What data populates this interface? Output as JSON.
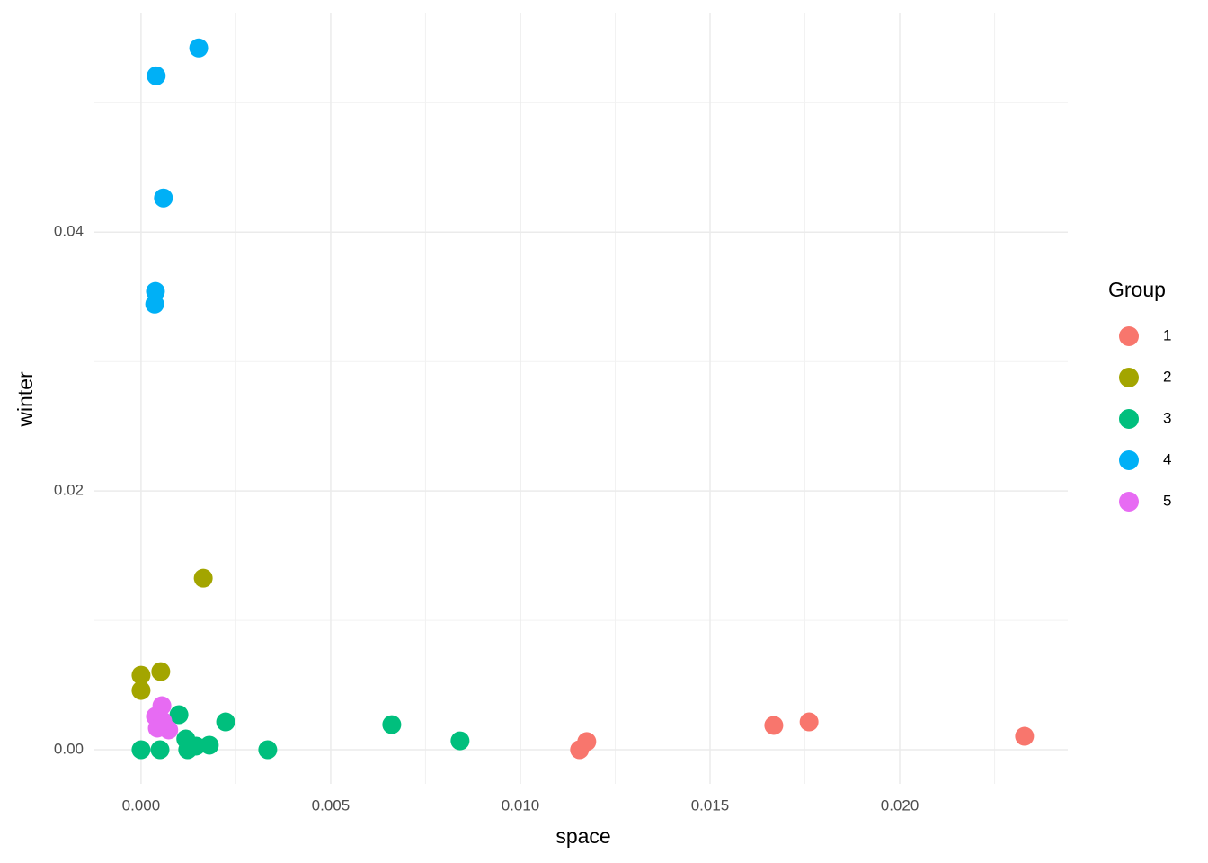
{
  "chart_data": {
    "type": "scatter",
    "xlabel": "space",
    "ylabel": "winter",
    "legend_title": "Group",
    "legend": "right",
    "grid": true,
    "xlim": [
      -0.00123,
      0.02443
    ],
    "ylim": [
      -0.00264,
      0.0569
    ],
    "xticks": [
      {
        "value": 0,
        "label": "0.000"
      },
      {
        "value": 0.005,
        "label": "0.005"
      },
      {
        "value": 0.01,
        "label": "0.010"
      },
      {
        "value": 0.015,
        "label": "0.015"
      },
      {
        "value": 0.02,
        "label": "0.020"
      }
    ],
    "yticks": [
      {
        "value": 0,
        "label": "0.00"
      },
      {
        "value": 0.02,
        "label": "0.02"
      },
      {
        "value": 0.04,
        "label": "0.04"
      }
    ],
    "xminor": [
      0.0025,
      0.0075,
      0.0125,
      0.0175,
      0.0225
    ],
    "yminor": [
      0.01,
      0.03,
      0.05
    ],
    "series": [
      {
        "name": "1",
        "color": "#F8766D",
        "x": [
          0.01156,
          0.01175,
          0.01668,
          0.01761,
          0.02329
        ],
        "values": [
          0,
          0.00063,
          0.00188,
          0.00215,
          0.00104
        ]
      },
      {
        "name": "2",
        "color": "#A3A500",
        "x": [
          0,
          0,
          0.00052,
          0.00164
        ],
        "values": [
          0.00576,
          0.00458,
          0.00604,
          0.01326
        ]
      },
      {
        "name": "3",
        "color": "#00BF7D",
        "x": [
          0,
          0.0005,
          0.001,
          0.00118,
          0.00123,
          0.00145,
          0.0018,
          0.00223,
          0.00334,
          0.00661,
          0.00841
        ],
        "values": [
          0,
          0,
          0.00271,
          0.00083,
          0,
          0.00028,
          0.00035,
          0.00215,
          0,
          0.00194,
          0.00069
        ]
      },
      {
        "name": "4",
        "color": "#00B0F6",
        "x": [
          0.00152,
          0.0004,
          0.00059,
          0.00038,
          0.00036
        ],
        "values": [
          0.05424,
          0.05208,
          0.04264,
          0.03542,
          0.03444
        ]
      },
      {
        "name": "5",
        "color": "#E76BF3",
        "x": [
          0.00055,
          0.00038,
          0.00043,
          0.00073,
          0.00057
        ],
        "values": [
          0.0034,
          0.00257,
          0.00167,
          0.00153,
          0.00222
        ]
      }
    ]
  }
}
